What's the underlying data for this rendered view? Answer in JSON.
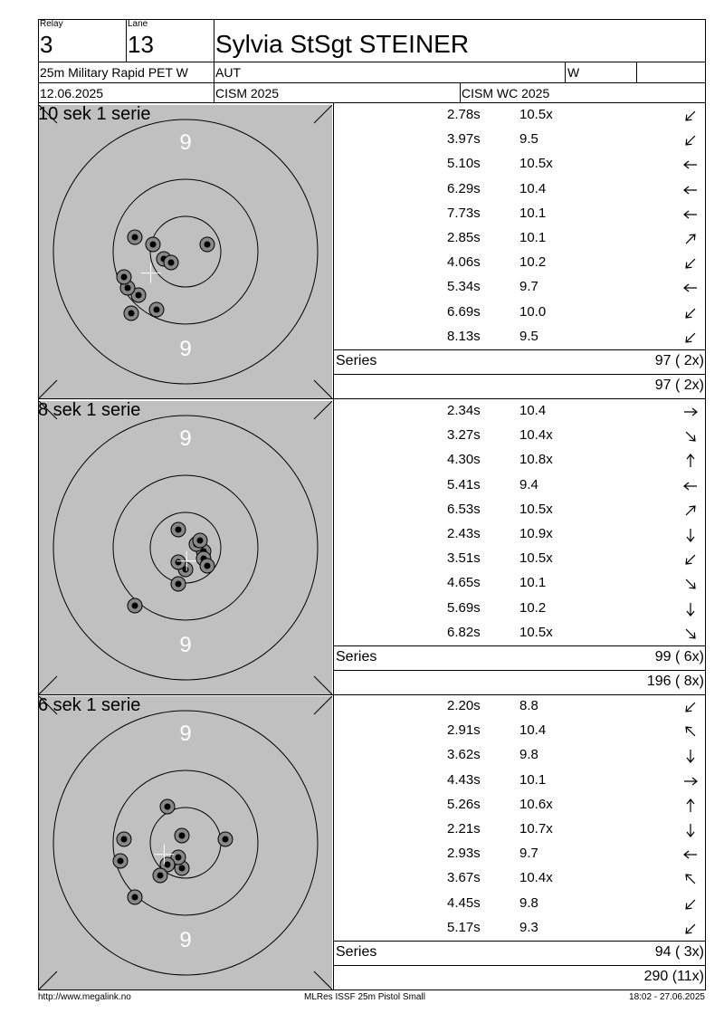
{
  "header": {
    "relay_label": "Relay",
    "relay": "3",
    "lane_label": "Lane",
    "lane": "13",
    "shooter": "Sylvia StSgt STEINER",
    "event": "25m Military Rapid PET W",
    "nation": "AUT",
    "gender": "W",
    "date": "12.06.2025",
    "competition": "CISM 2025",
    "match": "CISM WC 2025"
  },
  "stages": [
    {
      "title": "10 sek 1 serie",
      "ring_label": "9",
      "shots": [
        {
          "time": "2.78s",
          "score": "10.5x",
          "dir": "down-left"
        },
        {
          "time": "3.97s",
          "score": "9.5",
          "dir": "down-left"
        },
        {
          "time": "5.10s",
          "score": "10.5x",
          "dir": "left"
        },
        {
          "time": "6.29s",
          "score": "10.4",
          "dir": "left"
        },
        {
          "time": "7.73s",
          "score": "10.1",
          "dir": "left"
        },
        {
          "time": "2.85s",
          "score": "10.1",
          "dir": "up-right"
        },
        {
          "time": "4.06s",
          "score": "10.2",
          "dir": "down-left"
        },
        {
          "time": "5.34s",
          "score": "9.7",
          "dir": "left"
        },
        {
          "time": "6.69s",
          "score": "10.0",
          "dir": "down-left"
        },
        {
          "time": "8.13s",
          "score": "9.5",
          "dir": "down-left"
        }
      ],
      "series_label": "Series",
      "series_score": "97 ( 2x)",
      "total_score": "97 ( 2x)",
      "impacts": [
        [
          -0.6,
          0.2
        ],
        [
          -1.5,
          1.7
        ],
        [
          -1.3,
          1.2
        ],
        [
          -1.6,
          1.0
        ],
        [
          -0.8,
          1.6
        ],
        [
          -1.7,
          0.7
        ],
        [
          -0.9,
          -0.2
        ],
        [
          -0.4,
          0.3
        ],
        [
          -1.4,
          -0.4
        ],
        [
          0.6,
          -0.2
        ]
      ]
    },
    {
      "title": "8 sek 1 serie",
      "ring_label": "9",
      "shots": [
        {
          "time": "2.34s",
          "score": "10.4",
          "dir": "right"
        },
        {
          "time": "3.27s",
          "score": "10.4x",
          "dir": "down-right"
        },
        {
          "time": "4.30s",
          "score": "10.8x",
          "dir": "up"
        },
        {
          "time": "5.41s",
          "score": "9.4",
          "dir": "left"
        },
        {
          "time": "6.53s",
          "score": "10.5x",
          "dir": "up-right"
        },
        {
          "time": "2.43s",
          "score": "10.9x",
          "dir": "down"
        },
        {
          "time": "3.51s",
          "score": "10.5x",
          "dir": "down-left"
        },
        {
          "time": "4.65s",
          "score": "10.1",
          "dir": "down-right"
        },
        {
          "time": "5.69s",
          "score": "10.2",
          "dir": "down"
        },
        {
          "time": "6.82s",
          "score": "10.5x",
          "dir": "down-right"
        }
      ],
      "series_label": "Series",
      "series_score": "99 ( 6x)",
      "total_score": "196 ( 8x)",
      "impacts": [
        [
          0.0,
          0.6
        ],
        [
          0.5,
          0.1
        ],
        [
          -0.2,
          0.4
        ],
        [
          -1.4,
          1.6
        ],
        [
          0.3,
          -0.1
        ],
        [
          0.4,
          -0.2
        ],
        [
          -0.2,
          -0.5
        ],
        [
          -0.2,
          1.0
        ],
        [
          0.5,
          0.3
        ],
        [
          0.6,
          0.5
        ]
      ]
    },
    {
      "title": "6 sek 1 serie",
      "ring_label": "9",
      "shots": [
        {
          "time": "2.20s",
          "score": "8.8",
          "dir": "down-left"
        },
        {
          "time": "2.91s",
          "score": "10.4",
          "dir": "up-left"
        },
        {
          "time": "3.62s",
          "score": "9.8",
          "dir": "down"
        },
        {
          "time": "4.43s",
          "score": "10.1",
          "dir": "right"
        },
        {
          "time": "5.26s",
          "score": "10.6x",
          "dir": "up"
        },
        {
          "time": "2.21s",
          "score": "10.7x",
          "dir": "down"
        },
        {
          "time": "2.93s",
          "score": "9.7",
          "dir": "left"
        },
        {
          "time": "3.67s",
          "score": "10.4x",
          "dir": "up-left"
        },
        {
          "time": "4.45s",
          "score": "9.8",
          "dir": "down-left"
        },
        {
          "time": "5.17s",
          "score": "9.3",
          "dir": "down-left"
        }
      ],
      "series_label": "Series",
      "series_score": "94 ( 3x)",
      "total_score": "290 (11x)",
      "impacts": [
        [
          -1.4,
          1.5
        ],
        [
          -1.8,
          0.5
        ],
        [
          -0.1,
          0.7
        ],
        [
          -0.2,
          0.4
        ],
        [
          1.1,
          -0.1
        ],
        [
          -1.7,
          -0.1
        ],
        [
          -0.5,
          -1.0
        ],
        [
          -0.5,
          0.6
        ],
        [
          -0.1,
          -0.2
        ],
        [
          -0.7,
          0.9
        ]
      ]
    }
  ],
  "footer": {
    "left": "http://www.megalink.no",
    "center": "MLRes ISSF 25m Pistol Small",
    "right": "18:02 - 27.06.2025"
  }
}
